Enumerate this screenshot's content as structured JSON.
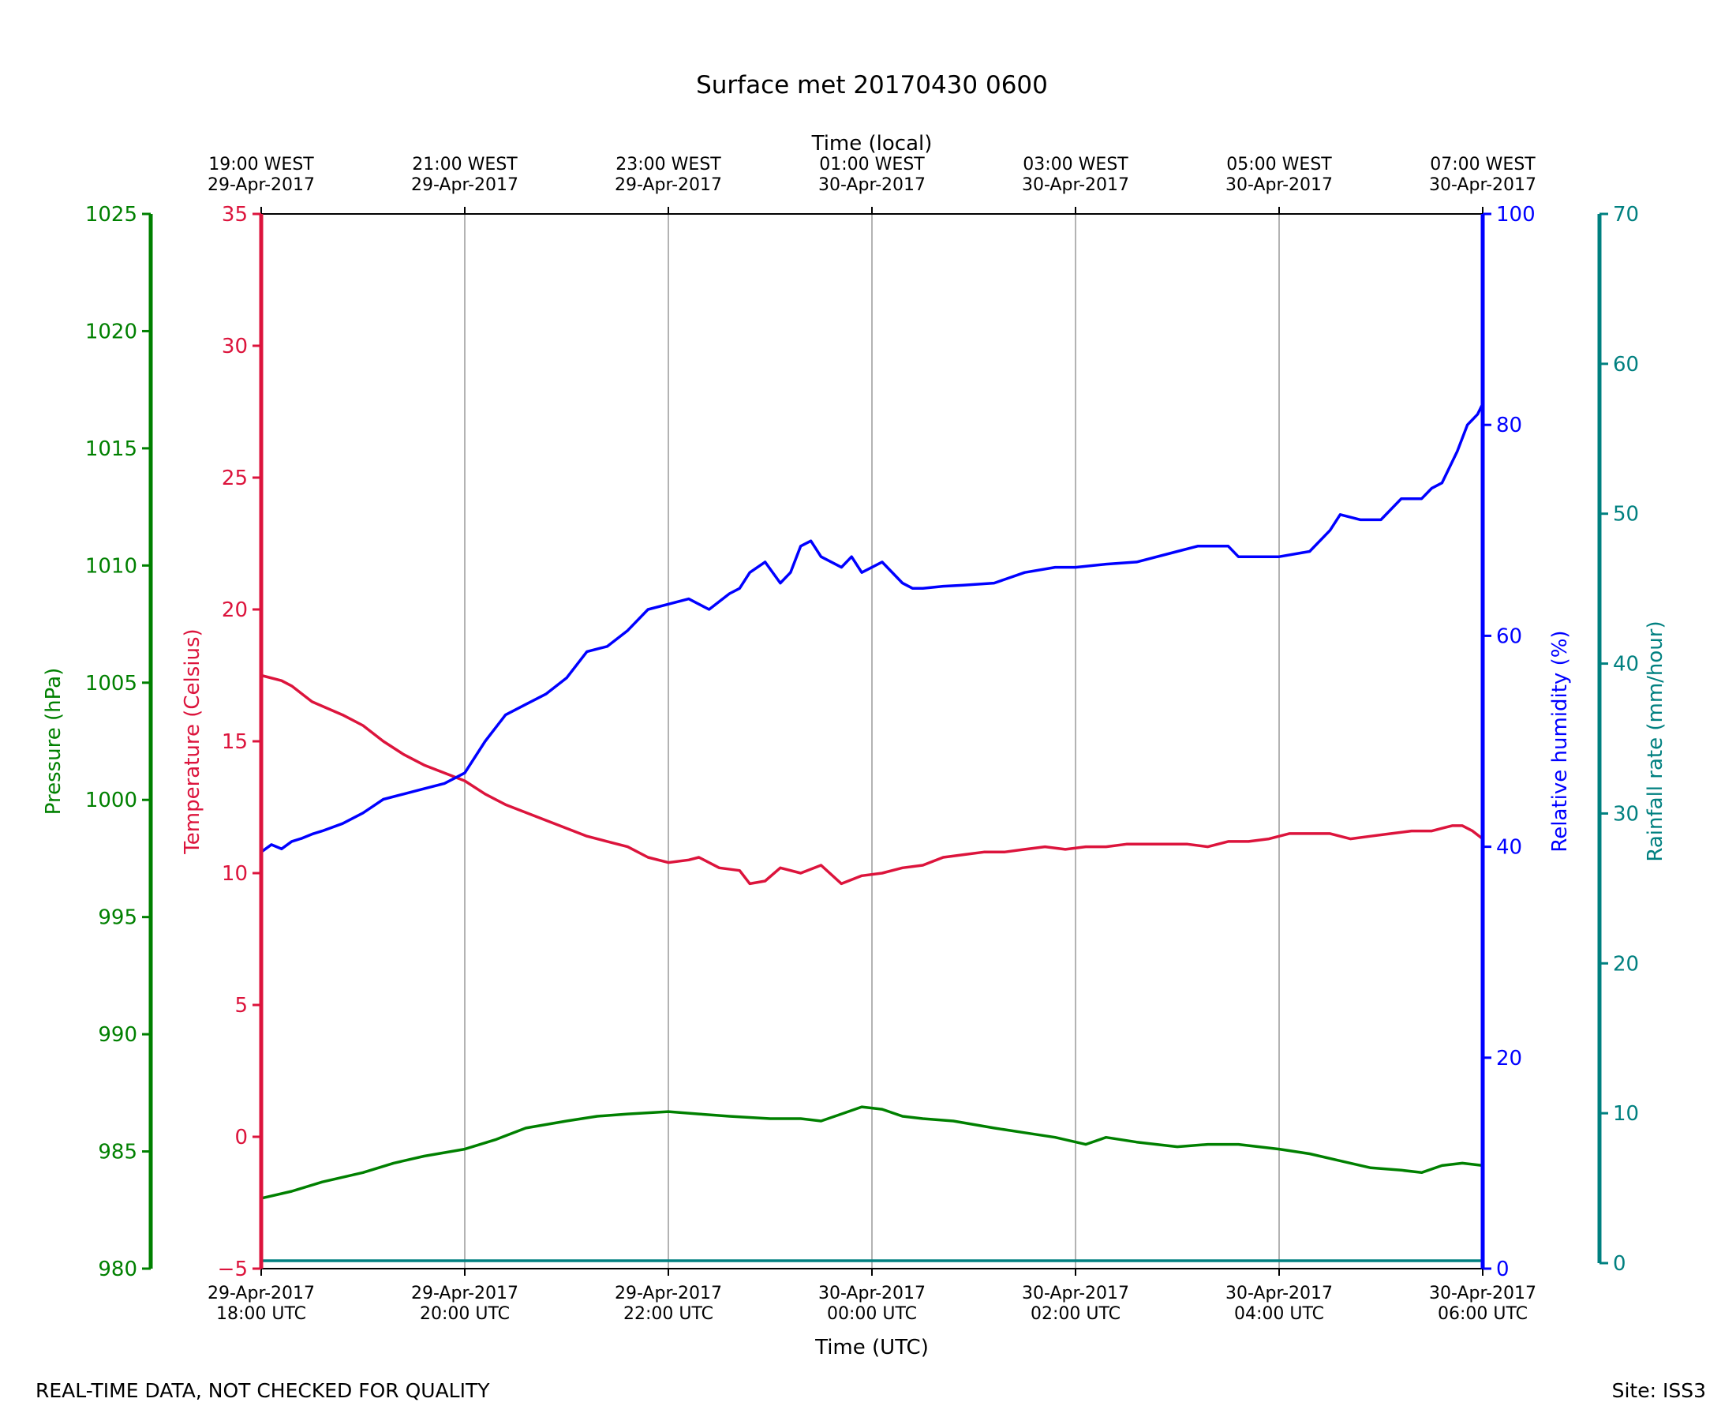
{
  "footer": {
    "quality_note": "REAL-TIME DATA, NOT CHECKED FOR QUALITY",
    "site": "Site: ISS3"
  },
  "colors": {
    "temperature": "#dc143c",
    "humidity": "#0000ff",
    "pressure": "#008000",
    "rainfall": "#008080",
    "grid": "#a0a0a0",
    "frame": "#000000"
  },
  "chart_data": {
    "type": "line",
    "title": "Surface met 20170430 0600",
    "xlabel": "Time (UTC)",
    "xlabel_top": "Time (local)",
    "xlim": [
      0,
      12
    ],
    "x_ticks_bottom": [
      {
        "x": 0,
        "line1": "29-Apr-2017",
        "line2": "18:00 UTC"
      },
      {
        "x": 2,
        "line1": "29-Apr-2017",
        "line2": "20:00 UTC"
      },
      {
        "x": 4,
        "line1": "29-Apr-2017",
        "line2": "22:00 UTC"
      },
      {
        "x": 6,
        "line1": "30-Apr-2017",
        "line2": "00:00 UTC"
      },
      {
        "x": 8,
        "line1": "30-Apr-2017",
        "line2": "02:00 UTC"
      },
      {
        "x": 10,
        "line1": "30-Apr-2017",
        "line2": "04:00 UTC"
      },
      {
        "x": 12,
        "line1": "30-Apr-2017",
        "line2": "06:00 UTC"
      }
    ],
    "x_ticks_top": [
      {
        "x": 0,
        "line1": "19:00 WEST",
        "line2": "29-Apr-2017"
      },
      {
        "x": 2,
        "line1": "21:00 WEST",
        "line2": "29-Apr-2017"
      },
      {
        "x": 4,
        "line1": "23:00 WEST",
        "line2": "29-Apr-2017"
      },
      {
        "x": 6,
        "line1": "01:00 WEST",
        "line2": "30-Apr-2017"
      },
      {
        "x": 8,
        "line1": "03:00 WEST",
        "line2": "30-Apr-2017"
      },
      {
        "x": 10,
        "line1": "05:00 WEST",
        "line2": "30-Apr-2017"
      },
      {
        "x": 12,
        "line1": "07:00 WEST",
        "line2": "30-Apr-2017"
      }
    ],
    "grid": "vertical",
    "axes": [
      {
        "id": "pressure",
        "label": "Pressure (hPa)",
        "ylim": [
          980,
          1025
        ],
        "ticks": [
          980,
          985,
          990,
          995,
          1000,
          1005,
          1010,
          1015,
          1020,
          1025
        ]
      },
      {
        "id": "temperature",
        "label": "Temperature (Celsius)",
        "ylim": [
          -5,
          35
        ],
        "ticks": [
          -5,
          0,
          5,
          10,
          15,
          20,
          25,
          30,
          35
        ]
      },
      {
        "id": "humidity",
        "label": "Relative humidity (%)",
        "ylim": [
          0,
          100
        ],
        "ticks": [
          0,
          20,
          40,
          60,
          80,
          100
        ]
      },
      {
        "id": "rainfall",
        "label": "Rainfall rate (mm/hour)",
        "ylim": [
          0,
          70
        ],
        "ticks": [
          0,
          10,
          20,
          30,
          40,
          50,
          60,
          70
        ]
      }
    ],
    "series": [
      {
        "axis": "temperature",
        "x": [
          0,
          0.2,
          0.3,
          0.5,
          0.8,
          1.0,
          1.2,
          1.4,
          1.6,
          1.8,
          2.0,
          2.2,
          2.4,
          2.6,
          2.8,
          3.0,
          3.2,
          3.4,
          3.6,
          3.8,
          4.0,
          4.2,
          4.3,
          4.5,
          4.7,
          4.8,
          4.95,
          5.1,
          5.3,
          5.5,
          5.7,
          5.9,
          6.1,
          6.3,
          6.5,
          6.7,
          6.9,
          7.1,
          7.3,
          7.5,
          7.7,
          7.9,
          8.1,
          8.3,
          8.5,
          8.7,
          8.9,
          9.1,
          9.3,
          9.5,
          9.7,
          9.9,
          10.1,
          10.3,
          10.5,
          10.7,
          10.9,
          11.1,
          11.3,
          11.5,
          11.6,
          11.7,
          11.8,
          11.9,
          12.0
        ],
        "y": [
          17.5,
          17.3,
          17.1,
          16.5,
          16.0,
          15.6,
          15.0,
          14.5,
          14.1,
          13.8,
          13.5,
          13.0,
          12.6,
          12.3,
          12.0,
          11.7,
          11.4,
          11.2,
          11.0,
          10.6,
          10.4,
          10.5,
          10.6,
          10.2,
          10.1,
          9.6,
          9.7,
          10.2,
          10.0,
          10.3,
          9.6,
          9.9,
          10.0,
          10.2,
          10.3,
          10.6,
          10.7,
          10.8,
          10.8,
          10.9,
          11.0,
          10.9,
          11.0,
          11.0,
          11.1,
          11.1,
          11.1,
          11.1,
          11.0,
          11.2,
          11.2,
          11.3,
          11.5,
          11.5,
          11.5,
          11.3,
          11.4,
          11.5,
          11.6,
          11.6,
          11.7,
          11.8,
          11.8,
          11.6,
          11.3
        ]
      },
      {
        "axis": "humidity",
        "x": [
          0,
          0.1,
          0.2,
          0.3,
          0.4,
          0.5,
          0.6,
          0.8,
          1.0,
          1.2,
          1.4,
          1.6,
          1.8,
          2.0,
          2.2,
          2.4,
          2.6,
          2.8,
          3.0,
          3.2,
          3.4,
          3.6,
          3.8,
          4.0,
          4.2,
          4.4,
          4.6,
          4.7,
          4.8,
          4.95,
          5.1,
          5.2,
          5.3,
          5.4,
          5.5,
          5.7,
          5.8,
          5.9,
          6.1,
          6.3,
          6.4,
          6.5,
          6.7,
          6.9,
          7.2,
          7.5,
          7.8,
          8.0,
          8.3,
          8.6,
          9.0,
          9.2,
          9.5,
          9.6,
          9.8,
          10.0,
          10.3,
          10.5,
          10.6,
          10.8,
          11.0,
          11.2,
          11.4,
          11.5,
          11.6,
          11.75,
          11.85,
          11.9,
          11.95,
          12.0
        ],
        "y": [
          39.5,
          40.2,
          39.8,
          40.5,
          40.8,
          41.2,
          41.5,
          42.2,
          43.2,
          44.5,
          45.0,
          45.5,
          46.0,
          47.0,
          50.0,
          52.5,
          53.5,
          54.5,
          56.0,
          58.5,
          59.0,
          60.5,
          62.5,
          63.0,
          63.5,
          62.5,
          64.0,
          64.5,
          66.0,
          67.0,
          65.0,
          66.0,
          68.5,
          69.0,
          67.5,
          66.5,
          67.5,
          66.0,
          67.0,
          65.0,
          64.5,
          64.5,
          64.7,
          64.8,
          65.0,
          66.0,
          66.5,
          66.5,
          66.8,
          67.0,
          68.0,
          68.5,
          68.5,
          67.5,
          67.5,
          67.5,
          68.0,
          70.0,
          71.5,
          71.0,
          71.0,
          73.0,
          73.0,
          74.0,
          74.5,
          77.5,
          80.0,
          80.5,
          81.0,
          82.0
        ]
      },
      {
        "axis": "pressure",
        "x": [
          0,
          0.3,
          0.6,
          1.0,
          1.3,
          1.6,
          2.0,
          2.3,
          2.6,
          3.0,
          3.3,
          3.6,
          4.0,
          4.3,
          4.6,
          5.0,
          5.3,
          5.5,
          5.7,
          5.9,
          6.1,
          6.3,
          6.5,
          6.8,
          7.2,
          7.5,
          7.8,
          8.1,
          8.3,
          8.6,
          9.0,
          9.3,
          9.6,
          10.0,
          10.3,
          10.6,
          10.9,
          11.2,
          11.4,
          11.6,
          11.8,
          12.0
        ],
        "y": [
          983.0,
          983.3,
          983.7,
          984.1,
          984.5,
          984.8,
          985.1,
          985.5,
          986.0,
          986.3,
          986.5,
          986.6,
          986.7,
          986.6,
          986.5,
          986.4,
          986.4,
          986.3,
          986.6,
          986.9,
          986.8,
          986.5,
          986.4,
          986.3,
          986.0,
          985.8,
          985.6,
          985.3,
          985.6,
          985.4,
          985.2,
          985.3,
          985.3,
          985.1,
          984.9,
          984.6,
          984.3,
          984.2,
          984.1,
          984.4,
          984.5,
          984.4
        ]
      },
      {
        "axis": "rainfall",
        "x": [
          0,
          12
        ],
        "y": [
          0,
          0
        ]
      }
    ]
  }
}
